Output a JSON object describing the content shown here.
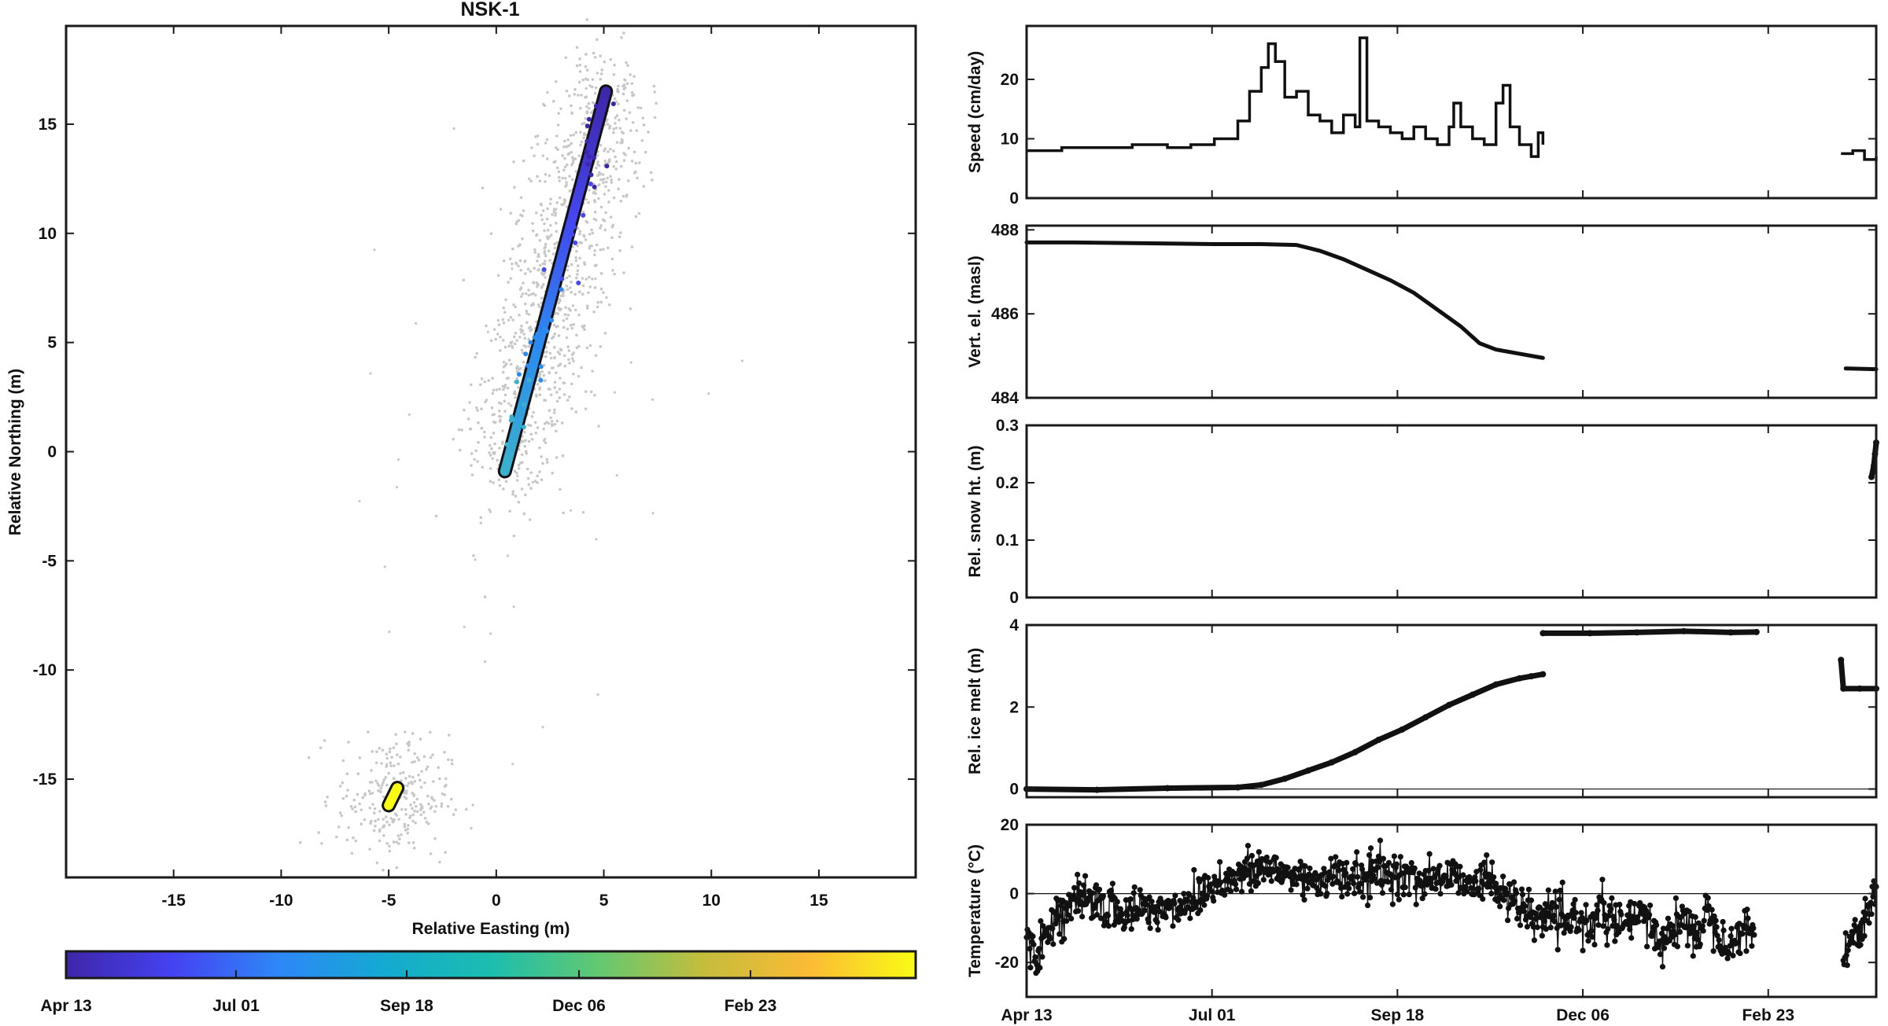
{
  "figure": {
    "title": "NSK-1"
  },
  "colorbar": {
    "colormap": "parula",
    "colors": [
      "#3e26a8",
      "#4542f2",
      "#2e87f7",
      "#14aad1",
      "#1cbdae",
      "#62c872",
      "#c4bd3c",
      "#fbbb35",
      "#f9fb15"
    ],
    "tick_labels": [
      "Apr 13",
      "Jul 01",
      "Sep 18",
      "Dec 06",
      "Feb 23"
    ]
  },
  "chart_data": [
    {
      "type": "scatter",
      "title": "NSK-1",
      "xlabel": "Relative Easting (m)",
      "ylabel": "Relative Northing (m)",
      "xlim": [
        -20,
        19.5
      ],
      "ylim": [
        -19.5,
        19.5
      ],
      "xticks": [
        -15,
        -10,
        -5,
        0,
        5,
        10,
        15
      ],
      "yticks": [
        -15,
        -10,
        -5,
        0,
        5,
        10,
        15
      ],
      "scatter_color": "#c8c8c8",
      "track_1": {
        "start": [
          0.4,
          -0.9
        ],
        "end": [
          5.1,
          16.5
        ],
        "colors": [
          "#3ab1cd",
          "#2b8bf0",
          "#4446f0",
          "#3e26a8"
        ]
      },
      "track_2": {
        "start": [
          -5.0,
          -16.2
        ],
        "end": [
          -4.6,
          -15.4
        ],
        "colors": [
          "#f9fb15"
        ]
      }
    },
    {
      "type": "line",
      "ylabel": "Speed (cm/day)",
      "ylim": [
        0,
        29
      ],
      "yticks": [
        0,
        10,
        20
      ],
      "x_unit": "days since Apr 13",
      "xlim": [
        0,
        362
      ],
      "series": [
        {
          "style": "step",
          "points": [
            [
              0,
              8
            ],
            [
              15,
              8.5
            ],
            [
              30,
              8.5
            ],
            [
              45,
              9
            ],
            [
              60,
              8.5
            ],
            [
              70,
              9
            ],
            [
              80,
              10
            ],
            [
              90,
              13
            ],
            [
              95,
              18
            ],
            [
              100,
              22
            ],
            [
              103,
              26
            ],
            [
              106,
              23
            ],
            [
              110,
              17
            ],
            [
              115,
              18
            ],
            [
              120,
              14
            ],
            [
              125,
              13
            ],
            [
              130,
              11
            ],
            [
              135,
              14
            ],
            [
              140,
              12
            ],
            [
              142,
              27
            ],
            [
              145,
              13
            ],
            [
              150,
              12
            ],
            [
              155,
              11
            ],
            [
              160,
              10
            ],
            [
              165,
              12
            ],
            [
              170,
              10
            ],
            [
              175,
              9
            ],
            [
              180,
              12
            ],
            [
              182,
              16
            ],
            [
              185,
              12
            ],
            [
              190,
              10
            ],
            [
              195,
              9
            ],
            [
              200,
              16
            ],
            [
              203,
              19
            ],
            [
              206,
              12
            ],
            [
              210,
              9
            ],
            [
              215,
              7
            ],
            [
              218,
              11
            ],
            [
              220,
              9
            ]
          ]
        },
        {
          "style": "step",
          "points": [
            [
              347,
              7.5
            ],
            [
              352,
              8
            ],
            [
              357,
              6.5
            ],
            [
              362,
              7
            ]
          ]
        }
      ]
    },
    {
      "type": "line",
      "ylabel": "Vert. el. (masl)",
      "ylim": [
        484,
        488.1
      ],
      "yticks": [
        484,
        486,
        488
      ],
      "x_unit": "days since Apr 13",
      "xlim": [
        0,
        362
      ],
      "series": [
        {
          "style": "line",
          "points": [
            [
              0,
              487.7
            ],
            [
              20,
              487.7
            ],
            [
              50,
              487.68
            ],
            [
              80,
              487.66
            ],
            [
              100,
              487.66
            ],
            [
              115,
              487.64
            ],
            [
              125,
              487.5
            ],
            [
              135,
              487.3
            ],
            [
              145,
              487.05
            ],
            [
              155,
              486.8
            ],
            [
              165,
              486.5
            ],
            [
              175,
              486.1
            ],
            [
              185,
              485.7
            ],
            [
              193,
              485.3
            ],
            [
              200,
              485.15
            ],
            [
              210,
              485.05
            ],
            [
              220,
              484.95
            ]
          ]
        },
        {
          "style": "line",
          "points": [
            [
              349,
              484.7
            ],
            [
              362,
              484.68
            ]
          ]
        }
      ]
    },
    {
      "type": "line",
      "ylabel": "Rel. snow ht. (m)",
      "ylim": [
        0,
        0.3
      ],
      "yticks": [
        0,
        0.1,
        0.2,
        0.3
      ],
      "x_unit": "days since Apr 13",
      "xlim": [
        0,
        362
      ],
      "series": [
        {
          "style": "markers",
          "points": [
            [
              360,
              0.21
            ],
            [
              361,
              0.23
            ],
            [
              361.5,
              0.25
            ],
            [
              362,
              0.27
            ]
          ]
        }
      ]
    },
    {
      "type": "line",
      "ylabel": "Rel. ice melt (m)",
      "ylim": [
        -0.2,
        4
      ],
      "yticks": [
        0,
        2,
        4
      ],
      "zero_line": true,
      "x_unit": "days since Apr 13",
      "xlim": [
        0,
        362
      ],
      "series": [
        {
          "style": "markers",
          "points": [
            [
              0,
              0
            ],
            [
              30,
              -0.02
            ],
            [
              60,
              0.02
            ],
            [
              90,
              0.04
            ],
            [
              100,
              0.1
            ],
            [
              110,
              0.25
            ],
            [
              120,
              0.45
            ],
            [
              130,
              0.65
            ],
            [
              140,
              0.9
            ],
            [
              150,
              1.2
            ],
            [
              160,
              1.45
            ],
            [
              170,
              1.75
            ],
            [
              180,
              2.05
            ],
            [
              190,
              2.3
            ],
            [
              200,
              2.55
            ],
            [
              210,
              2.7
            ],
            [
              215,
              2.75
            ],
            [
              220,
              2.8
            ]
          ]
        },
        {
          "style": "markers",
          "points": [
            [
              220,
              3.8
            ],
            [
              240,
              3.8
            ],
            [
              260,
              3.82
            ],
            [
              280,
              3.85
            ],
            [
              300,
              3.82
            ],
            [
              311,
              3.83
            ]
          ]
        },
        {
          "style": "markers",
          "points": [
            [
              347,
              3.15
            ],
            [
              348,
              2.45
            ],
            [
              355,
              2.45
            ],
            [
              362,
              2.45
            ]
          ]
        }
      ]
    },
    {
      "type": "line",
      "ylabel": "Temperature (°C)",
      "ylim": [
        -30,
        20
      ],
      "yticks": [
        -20,
        0,
        20
      ],
      "zero_line": true,
      "x_unit": "days since Apr 13",
      "xlim": [
        0,
        362
      ],
      "series": [
        {
          "style": "noisy",
          "points": [
            [
              0,
              -12
            ],
            [
              5,
              -18
            ],
            [
              10,
              -8
            ],
            [
              20,
              -3
            ],
            [
              30,
              -2
            ],
            [
              40,
              -6
            ],
            [
              50,
              -4
            ],
            [
              60,
              -5
            ],
            [
              70,
              -2
            ],
            [
              80,
              3
            ],
            [
              90,
              5
            ],
            [
              100,
              7
            ],
            [
              110,
              6
            ],
            [
              120,
              4
            ],
            [
              130,
              5
            ],
            [
              140,
              4
            ],
            [
              150,
              6
            ],
            [
              160,
              5
            ],
            [
              170,
              4
            ],
            [
              180,
              5
            ],
            [
              190,
              4
            ],
            [
              200,
              3
            ],
            [
              205,
              -1
            ],
            [
              210,
              -4
            ],
            [
              215,
              -8
            ],
            [
              220,
              -6
            ],
            [
              225,
              -7
            ],
            [
              230,
              -10
            ],
            [
              235,
              -6
            ],
            [
              240,
              -10
            ],
            [
              245,
              -5
            ],
            [
              250,
              -8
            ],
            [
              255,
              -10
            ],
            [
              260,
              -6
            ],
            [
              265,
              -9
            ],
            [
              270,
              -14
            ],
            [
              275,
              -10
            ],
            [
              280,
              -8
            ],
            [
              285,
              -12
            ],
            [
              290,
              -5
            ],
            [
              295,
              -10
            ],
            [
              300,
              -16
            ],
            [
              305,
              -9
            ],
            [
              310,
              -12
            ]
          ]
        },
        {
          "style": "noisy",
          "points": [
            [
              348,
              -20
            ],
            [
              352,
              -12
            ],
            [
              356,
              -8
            ],
            [
              360,
              -3
            ],
            [
              362,
              2
            ]
          ]
        }
      ]
    }
  ]
}
